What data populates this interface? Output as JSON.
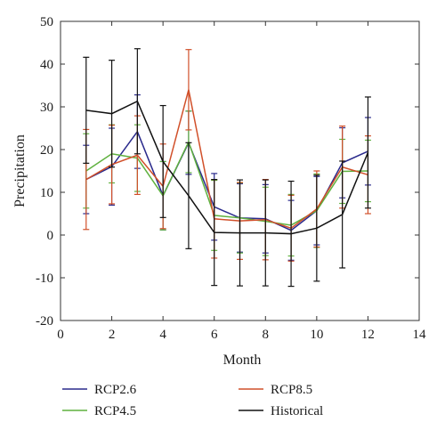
{
  "chart_data": {
    "type": "line",
    "title": "",
    "xlabel": "Month",
    "ylabel": "Precipitation",
    "xlim": [
      0,
      14
    ],
    "ylim": [
      -20,
      50
    ],
    "xticks": [
      0,
      2,
      4,
      6,
      8,
      10,
      12,
      14
    ],
    "yticks": [
      -20,
      -10,
      0,
      10,
      20,
      30,
      40,
      50
    ],
    "grid": false,
    "legend_position": "below",
    "x": [
      1,
      2,
      3,
      4,
      5,
      6,
      7,
      8,
      9,
      10,
      11,
      12
    ],
    "series": [
      {
        "name": "RCP2.6",
        "color": "#2a2a8c",
        "values": [
          13.0,
          16.0,
          24.2,
          9.2,
          21.6,
          6.6,
          4.0,
          3.8,
          1.1,
          5.7,
          16.9,
          19.6
        ],
        "error": [
          8.0,
          9.0,
          8.6,
          8.0,
          7.4,
          7.8,
          8.0,
          8.0,
          7.0,
          8.0,
          8.2,
          7.9
        ]
      },
      {
        "name": "RCP4.5",
        "color": "#5fb13f",
        "values": [
          15.0,
          19.0,
          18.0,
          9.2,
          21.8,
          4.6,
          4.0,
          3.2,
          2.3,
          5.7,
          14.9,
          15.0
        ],
        "error": [
          8.7,
          6.8,
          7.8,
          8.0,
          7.2,
          8.2,
          8.2,
          8.0,
          7.2,
          8.6,
          7.5,
          7.2
        ]
      },
      {
        "name": "RCP8.5",
        "color": "#d1502a",
        "values": [
          13.0,
          16.5,
          18.7,
          11.4,
          34.0,
          3.8,
          3.3,
          3.6,
          1.6,
          6.1,
          15.9,
          14.1
        ],
        "error": [
          11.7,
          9.2,
          9.2,
          9.9,
          9.4,
          9.2,
          9.0,
          9.4,
          7.7,
          8.9,
          9.6,
          9.1
        ]
      },
      {
        "name": "Historical",
        "color": "#111111",
        "values": [
          29.2,
          28.4,
          31.3,
          17.2,
          9.2,
          0.6,
          0.5,
          0.5,
          0.3,
          1.6,
          4.8,
          19.3
        ],
        "error": [
          12.4,
          12.5,
          12.3,
          13.1,
          12.4,
          12.4,
          12.4,
          12.4,
          12.3,
          12.4,
          12.5,
          13.0
        ]
      }
    ]
  }
}
